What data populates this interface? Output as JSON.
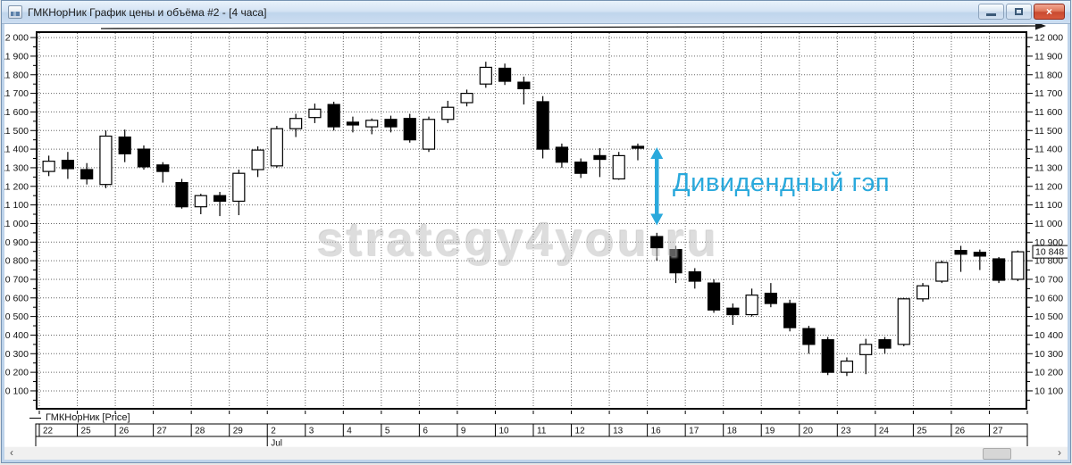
{
  "window": {
    "title": "ГМКНорНик График цены и объёма #2 - [4 часа]",
    "controls": {
      "close_glyph": "×"
    }
  },
  "scrollbar": {
    "left_arrow": "‹",
    "right_arrow": "›"
  },
  "annotations": {
    "gap_label": "Дивидендный гэп",
    "watermark": "strategy4you.ru",
    "accent_color": "#2aa9dc"
  },
  "chart_data": {
    "type": "candlestick",
    "title": "ГМКНорНик [Price]",
    "timeframe": "4 часа",
    "legend_position": "bottom-left",
    "grid": true,
    "y_axis": {
      "tick_values": [
        12000,
        11900,
        11800,
        11700,
        11600,
        11500,
        11400,
        11300,
        11200,
        11100,
        11000,
        10900,
        10800,
        10700,
        10600,
        10500,
        10400,
        10300,
        10200,
        10100
      ],
      "tick_labels": [
        "12 000",
        "11 900",
        "11 800",
        "11 700",
        "11 600",
        "11 500",
        "11 400",
        "11 300",
        "11 200",
        "11 100",
        "11 000",
        "10 900",
        "10 800",
        "10 700",
        "10 600",
        "10 500",
        "10 400",
        "10 300",
        "10 200",
        "10 100"
      ],
      "minor_step": 50,
      "range_top": 12034,
      "range_bottom": 9999
    },
    "x_axis": {
      "day_labels": [
        "22",
        "25",
        "26",
        "27",
        "28",
        "29",
        "2",
        "3",
        "4",
        "5",
        "6",
        "9",
        "10",
        "11",
        "12",
        "13",
        "16",
        "17",
        "18",
        "19",
        "20",
        "23",
        "24",
        "25",
        "26",
        "27"
      ],
      "month_label": "Jul",
      "month_boundary_day_index": 6,
      "candles_per_day": 2
    },
    "last_price": {
      "value": 10848,
      "label": "10 848"
    },
    "gap_arrow": {
      "candle_index": 32,
      "from_price": 11410,
      "to_price": 10990
    },
    "candles": [
      [
        11280,
        11365,
        11255,
        11335
      ],
      [
        11340,
        11385,
        11240,
        11295
      ],
      [
        11290,
        11325,
        11210,
        11240
      ],
      [
        11210,
        11500,
        11190,
        11470
      ],
      [
        11465,
        11505,
        11330,
        11375
      ],
      [
        11400,
        11420,
        11290,
        11305
      ],
      [
        11315,
        11330,
        11220,
        11280
      ],
      [
        11220,
        11240,
        11080,
        11090
      ],
      [
        11090,
        11160,
        11050,
        11150
      ],
      [
        11150,
        11170,
        11040,
        11120
      ],
      [
        11120,
        11290,
        11045,
        11270
      ],
      [
        11290,
        11415,
        11250,
        11395
      ],
      [
        11310,
        11525,
        11300,
        11510
      ],
      [
        11510,
        11590,
        11465,
        11565
      ],
      [
        11570,
        11645,
        11540,
        11615
      ],
      [
        11640,
        11655,
        11500,
        11520
      ],
      [
        11545,
        11575,
        11490,
        11530
      ],
      [
        11520,
        11565,
        11480,
        11555
      ],
      [
        11560,
        11580,
        11490,
        11520
      ],
      [
        11565,
        11590,
        11435,
        11450
      ],
      [
        11400,
        11575,
        11385,
        11560
      ],
      [
        11560,
        11660,
        11540,
        11625
      ],
      [
        11650,
        11720,
        11630,
        11700
      ],
      [
        11750,
        11870,
        11730,
        11840
      ],
      [
        11835,
        11860,
        11745,
        11765
      ],
      [
        11760,
        11790,
        11640,
        11725
      ],
      [
        11655,
        11685,
        11350,
        11400
      ],
      [
        11410,
        11430,
        11300,
        11330
      ],
      [
        11330,
        11350,
        11245,
        11270
      ],
      [
        11365,
        11405,
        11250,
        11345
      ],
      [
        11240,
        11385,
        11235,
        11365
      ],
      [
        11415,
        11430,
        11340,
        11405
      ],
      [
        10930,
        10950,
        10800,
        10870
      ],
      [
        10860,
        10880,
        10680,
        10735
      ],
      [
        10740,
        10760,
        10650,
        10690
      ],
      [
        10680,
        10700,
        10520,
        10535
      ],
      [
        10545,
        10570,
        10455,
        10510
      ],
      [
        10510,
        10650,
        10500,
        10615
      ],
      [
        10625,
        10680,
        10550,
        10570
      ],
      [
        10570,
        10590,
        10420,
        10440
      ],
      [
        10435,
        10450,
        10300,
        10350
      ],
      [
        10375,
        10390,
        10185,
        10200
      ],
      [
        10200,
        10280,
        10180,
        10260
      ],
      [
        10295,
        10380,
        10190,
        10350
      ],
      [
        10375,
        10390,
        10300,
        10330
      ],
      [
        10350,
        10600,
        10340,
        10595
      ],
      [
        10595,
        10680,
        10580,
        10665
      ],
      [
        10690,
        10800,
        10680,
        10790
      ],
      [
        10855,
        10880,
        10740,
        10835
      ],
      [
        10845,
        10860,
        10750,
        10825
      ],
      [
        10810,
        10820,
        10680,
        10695
      ],
      [
        10700,
        10855,
        10690,
        10848
      ]
    ]
  }
}
